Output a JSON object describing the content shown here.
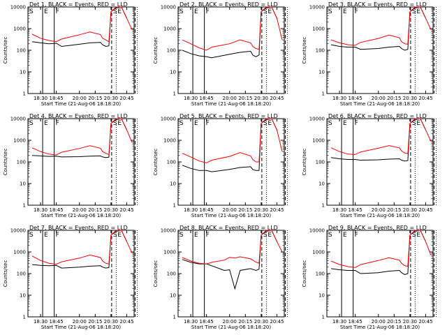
{
  "figure": {
    "xlabel": "Start Time (21-Aug-06 18:18:20)",
    "ylabel": "Counts/sec",
    "x_tick_labels": [
      "18:30",
      "18:45",
      "20:00",
      "20:15",
      "20:30",
      "20:45"
    ],
    "y_tick_labels": [
      "1",
      "10",
      "100",
      "1000",
      "10000"
    ],
    "flag_letters": [
      "S",
      "E",
      "F",
      "S",
      "E"
    ],
    "series_colors": {
      "events": "#000000",
      "lld": "#ff0000"
    }
  },
  "chart_data": [
    {
      "type": "line",
      "title": "Det 1, BLACK = Events, RED = LLD",
      "ylim": [
        1,
        10000
      ],
      "yscale": "log",
      "x": [
        "18:22",
        "18:30",
        "18:38",
        "18:45",
        "18:50",
        "20:00",
        "20:10",
        "20:20",
        "20:22",
        "20:25",
        "20:28",
        "20:30",
        "20:35",
        "20:40",
        "20:45",
        "20:50"
      ],
      "series": [
        {
          "name": "Events",
          "color": "#000000",
          "values": [
            250,
            220,
            200,
            210,
            150,
            190,
            220,
            230,
            180,
            150,
            160,
            6000,
            9000,
            10000,
            3000,
            null
          ]
        },
        {
          "name": "LLD",
          "color": "#ff0000",
          "values": [
            550,
            360,
            280,
            250,
            330,
            520,
            700,
            530,
            360,
            300,
            250,
            6000,
            10000,
            10000,
            3000,
            900
          ]
        }
      ]
    },
    {
      "type": "line",
      "title": "Det 2, BLACK = Events, RED = LLD",
      "ylim": [
        1,
        10000
      ],
      "yscale": "log",
      "x": [
        "18:22",
        "18:30",
        "18:38",
        "18:45",
        "18:50",
        "20:00",
        "20:10",
        "20:20",
        "20:22",
        "20:25",
        "20:28",
        "20:30",
        "20:35",
        "20:40",
        "20:45",
        "20:50"
      ],
      "series": [
        {
          "name": "Events",
          "color": "#000000",
          "values": [
            100,
            70,
            55,
            50,
            45,
            65,
            80,
            90,
            60,
            50,
            60,
            6000,
            9000,
            10000,
            3000,
            null
          ]
        },
        {
          "name": "LLD",
          "color": "#ff0000",
          "values": [
            300,
            200,
            130,
            100,
            140,
            200,
            300,
            220,
            150,
            120,
            110,
            6000,
            10000,
            10000,
            3000,
            300
          ]
        }
      ]
    },
    {
      "type": "line",
      "title": "Det 3, BLACK = Events, RED = LLD",
      "ylim": [
        1,
        10000
      ],
      "yscale": "log",
      "x": [
        "18:22",
        "18:30",
        "18:38",
        "18:45",
        "18:50",
        "20:00",
        "20:10",
        "20:20",
        "20:22",
        "20:25",
        "20:28",
        "20:30",
        "20:35",
        "20:40",
        "20:45",
        "20:50"
      ],
      "series": [
        {
          "name": "Events",
          "color": "#000000",
          "values": [
            180,
            150,
            140,
            140,
            110,
            120,
            140,
            150,
            120,
            100,
            110,
            6000,
            9000,
            10000,
            3000,
            null
          ]
        },
        {
          "name": "LLD",
          "color": "#ff0000",
          "values": [
            300,
            220,
            180,
            170,
            230,
            350,
            500,
            380,
            250,
            200,
            190,
            6000,
            10000,
            10000,
            3000,
            900
          ]
        }
      ]
    },
    {
      "type": "line",
      "title": "Det 4, BLACK = Events, RED = LLD",
      "ylim": [
        1,
        10000
      ],
      "yscale": "log",
      "x": [
        "18:22",
        "18:30",
        "18:38",
        "18:45",
        "18:50",
        "20:00",
        "20:10",
        "20:20",
        "20:22",
        "20:25",
        "20:28",
        "20:30",
        "20:35",
        "20:40",
        "20:45",
        "20:50"
      ],
      "series": [
        {
          "name": "Events",
          "color": "#000000",
          "values": [
            200,
            190,
            180,
            185,
            170,
            175,
            185,
            190,
            170,
            160,
            165,
            6000,
            9000,
            10000,
            3000,
            null
          ]
        },
        {
          "name": "LLD",
          "color": "#ff0000",
          "values": [
            450,
            300,
            230,
            210,
            280,
            420,
            560,
            430,
            300,
            250,
            220,
            6000,
            10000,
            10000,
            3000,
            800
          ]
        }
      ]
    },
    {
      "type": "line",
      "title": "Det 5, BLACK = Events, RED = LLD",
      "ylim": [
        1,
        10000
      ],
      "yscale": "log",
      "x": [
        "18:22",
        "18:30",
        "18:38",
        "18:45",
        "18:50",
        "20:00",
        "20:10",
        "20:20",
        "20:22",
        "20:25",
        "20:28",
        "20:30",
        "20:35",
        "20:40",
        "20:45",
        "20:50"
      ],
      "series": [
        {
          "name": "Events",
          "color": "#000000",
          "values": [
            70,
            50,
            40,
            40,
            35,
            45,
            55,
            60,
            45,
            40,
            40,
            6000,
            9000,
            10000,
            3000,
            null
          ]
        },
        {
          "name": "LLD",
          "color": "#ff0000",
          "values": [
            250,
            170,
            110,
            90,
            120,
            180,
            270,
            190,
            130,
            100,
            100,
            6000,
            10000,
            10000,
            3000,
            300
          ]
        }
      ]
    },
    {
      "type": "line",
      "title": "Det 6, BLACK = Events, RED = LLD",
      "ylim": [
        1,
        10000
      ],
      "yscale": "log",
      "x": [
        "18:22",
        "18:30",
        "18:38",
        "18:45",
        "18:50",
        "20:00",
        "20:10",
        "20:20",
        "20:22",
        "20:25",
        "20:28",
        "20:30",
        "20:35",
        "20:40",
        "20:45",
        "20:50"
      ],
      "series": [
        {
          "name": "Events",
          "color": "#000000",
          "values": [
            160,
            140,
            130,
            130,
            120,
            125,
            135,
            140,
            120,
            110,
            115,
            6000,
            9000,
            10000,
            3000,
            null
          ]
        },
        {
          "name": "LLD",
          "color": "#ff0000",
          "values": [
            450,
            300,
            230,
            220,
            290,
            430,
            570,
            450,
            320,
            260,
            240,
            6000,
            10000,
            10000,
            3000,
            900
          ]
        }
      ]
    },
    {
      "type": "line",
      "title": "Det 7, BLACK = Events, RED = LLD",
      "ylim": [
        1,
        10000
      ],
      "yscale": "log",
      "x": [
        "18:22",
        "18:30",
        "18:38",
        "18:45",
        "18:50",
        "20:00",
        "20:10",
        "20:20",
        "20:22",
        "20:25",
        "20:28",
        "20:30",
        "20:35",
        "20:40",
        "20:45",
        "20:50"
      ],
      "series": [
        {
          "name": "Events",
          "color": "#000000",
          "values": [
            260,
            240,
            230,
            240,
            180,
            200,
            220,
            230,
            200,
            180,
            190,
            6000,
            9000,
            10000,
            3000,
            null
          ]
        },
        {
          "name": "LLD",
          "color": "#ff0000",
          "values": [
            650,
            400,
            300,
            270,
            350,
            520,
            720,
            550,
            380,
            300,
            280,
            6000,
            10000,
            10000,
            3000,
            900
          ]
        }
      ]
    },
    {
      "type": "line",
      "title": "Det 8, BLACK = Events, RED = LLD",
      "ylim": [
        1,
        10000
      ],
      "yscale": "log",
      "x": [
        "18:22",
        "18:30",
        "18:38",
        "18:45",
        "18:50",
        "19:55",
        "20:00",
        "20:05",
        "20:10",
        "20:20",
        "20:25",
        "20:28",
        "20:30",
        "20:35",
        "20:40",
        "20:45",
        "20:50"
      ],
      "series": [
        {
          "name": "Events",
          "color": "#000000",
          "values": [
            450,
            330,
            280,
            280,
            230,
            140,
            150,
            20,
            140,
            170,
            140,
            160,
            6000,
            9000,
            10000,
            3000,
            null
          ]
        },
        {
          "name": "LLD",
          "color": "#ff0000",
          "values": [
            550,
            380,
            300,
            280,
            330,
            420,
            560,
            520,
            600,
            480,
            340,
            300,
            6000,
            10000,
            10000,
            3000,
            1000
          ]
        }
      ]
    },
    {
      "type": "line",
      "title": "Det 9, BLACK = Events, RED = LLD",
      "ylim": [
        1,
        10000
      ],
      "yscale": "log",
      "x": [
        "18:22",
        "18:30",
        "18:38",
        "18:45",
        "18:50",
        "20:00",
        "20:10",
        "20:20",
        "20:22",
        "20:25",
        "20:28",
        "20:30",
        "20:35",
        "20:40",
        "20:45",
        "20:50"
      ],
      "series": [
        {
          "name": "Events",
          "color": "#000000",
          "values": [
            170,
            150,
            140,
            140,
            100,
            110,
            130,
            140,
            110,
            90,
            100,
            6000,
            9000,
            10000,
            3000,
            null
          ]
        },
        {
          "name": "LLD",
          "color": "#ff0000",
          "values": [
            380,
            260,
            210,
            190,
            260,
            400,
            540,
            420,
            300,
            230,
            220,
            6000,
            10000,
            10000,
            3000,
            700
          ]
        }
      ]
    }
  ]
}
